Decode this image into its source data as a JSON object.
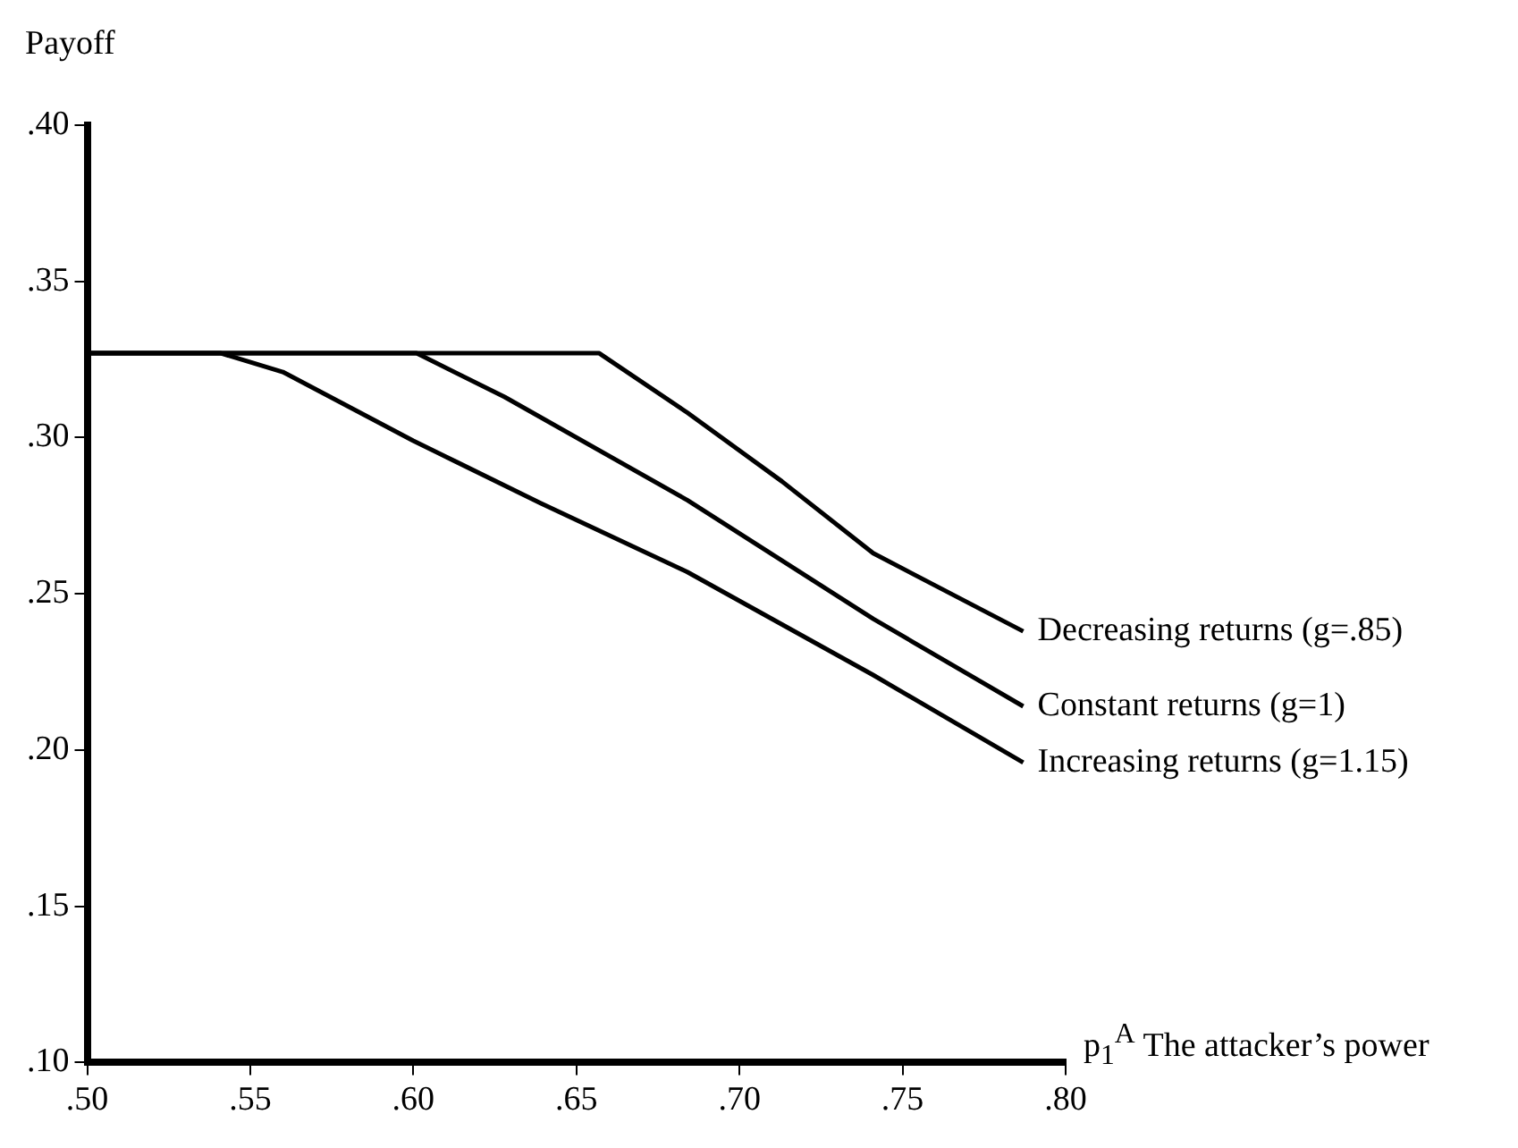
{
  "chart_data": {
    "type": "line",
    "ylabel": "Payoff",
    "xlabel": "p$_{1}$$^{A}$ The attacker’s power",
    "marker": "none",
    "xlim": [
      0.5,
      0.8
    ],
    "ylim": [
      0.1,
      0.4
    ],
    "xticks": [
      {
        "value": 0.5,
        "label": ".50"
      },
      {
        "value": 0.55,
        "label": ".55"
      },
      {
        "value": 0.6,
        "label": ".60"
      },
      {
        "value": 0.65,
        "label": ".65"
      },
      {
        "value": 0.7,
        "label": ".70"
      },
      {
        "value": 0.75,
        "label": ".75"
      },
      {
        "value": 0.8,
        "label": ".80"
      }
    ],
    "yticks": [
      {
        "value": 0.1,
        "label": ".10"
      },
      {
        "value": 0.15,
        "label": ".15"
      },
      {
        "value": 0.2,
        "label": ".20"
      },
      {
        "value": 0.25,
        "label": ".25"
      },
      {
        "value": 0.3,
        "label": ".30"
      },
      {
        "value": 0.35,
        "label": ".35"
      },
      {
        "value": 0.4,
        "label": ".40"
      }
    ],
    "series": [
      {
        "name": "Decreasing returns (g=.85)",
        "color": "#000000",
        "x": [
          0.5,
          0.657,
          0.684,
          0.713,
          0.741,
          0.787
        ],
        "values": [
          0.327,
          0.327,
          0.308,
          0.286,
          0.263,
          0.238
        ]
      },
      {
        "name": "Constant returns (g=1)",
        "color": "#000000",
        "x": [
          0.5,
          0.601,
          0.628,
          0.684,
          0.741,
          0.787
        ],
        "values": [
          0.327,
          0.327,
          0.313,
          0.28,
          0.242,
          0.214
        ]
      },
      {
        "name": "Increasing returns (g=1.15)",
        "color": "#000000",
        "x": [
          0.5,
          0.541,
          0.56,
          0.6,
          0.639,
          0.684,
          0.741,
          0.787
        ],
        "values": [
          0.327,
          0.327,
          0.321,
          0.299,
          0.279,
          0.257,
          0.224,
          0.196
        ]
      }
    ]
  }
}
